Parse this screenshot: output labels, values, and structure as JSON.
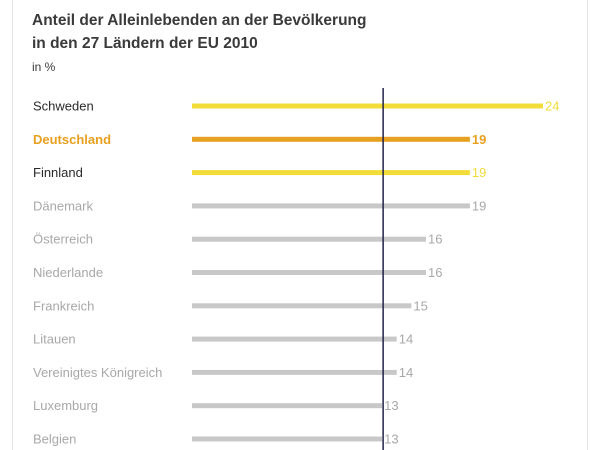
{
  "header": {
    "title_line1": "Anteil der Alleinlebenden an der Bevölkerung",
    "title_line2": "in den 27 Ländern der EU 2010",
    "unit": "in %"
  },
  "colors": {
    "highlight_yellow": "#f2dc3a",
    "highlight_orange": "#e8a020",
    "gray_bar": "#c8c8c8",
    "gray_label": "#a8a8a8",
    "dark_label": "#2a2a2a",
    "reference_line": "#22224a"
  },
  "chart_data": {
    "type": "bar",
    "orientation": "horizontal",
    "title": "Anteil der Alleinlebenden an der Bevölkerung in den 27 Ländern der EU 2010",
    "unit": "in %",
    "categories": [
      "Schweden",
      "Deutschland",
      "Finnland",
      "Dänemark",
      "Österreich",
      "Niederlande",
      "Frankreich",
      "Litauen",
      "Vereinigtes Königreich",
      "Luxemburg",
      "Belgien"
    ],
    "values": [
      24,
      19,
      19,
      19,
      16,
      16,
      15,
      14,
      14,
      13,
      13
    ],
    "highlight": [
      "yellow",
      "orange",
      "yellow",
      "gray",
      "gray",
      "gray",
      "gray",
      "gray",
      "gray",
      "gray",
      "gray"
    ],
    "reference_line_value": 13,
    "xlim": [
      0,
      24
    ],
    "grid": false
  }
}
